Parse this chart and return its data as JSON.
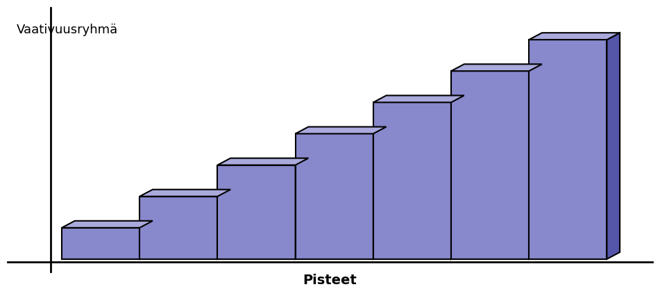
{
  "title_y": "Vaativuusryhmä",
  "title_x": "Pisteet",
  "n_bars": 7,
  "bar_heights": [
    1,
    2,
    3,
    4,
    5,
    6,
    7
  ],
  "bar_face_color": "#8888cc",
  "bar_top_color": "#aaaadd",
  "bar_right_color": "#5555aa",
  "bar_edge_color": "#000000",
  "background_color": "#ffffff",
  "ddx": 0.12,
  "ddy": 0.22,
  "bar_width": 0.72,
  "bar_gap": 0.0,
  "figsize": [
    9.51,
    4.26
  ],
  "dpi": 100,
  "ylabel_fontsize": 13,
  "xlabel_fontsize": 14,
  "spine_linewidth": 2.0
}
